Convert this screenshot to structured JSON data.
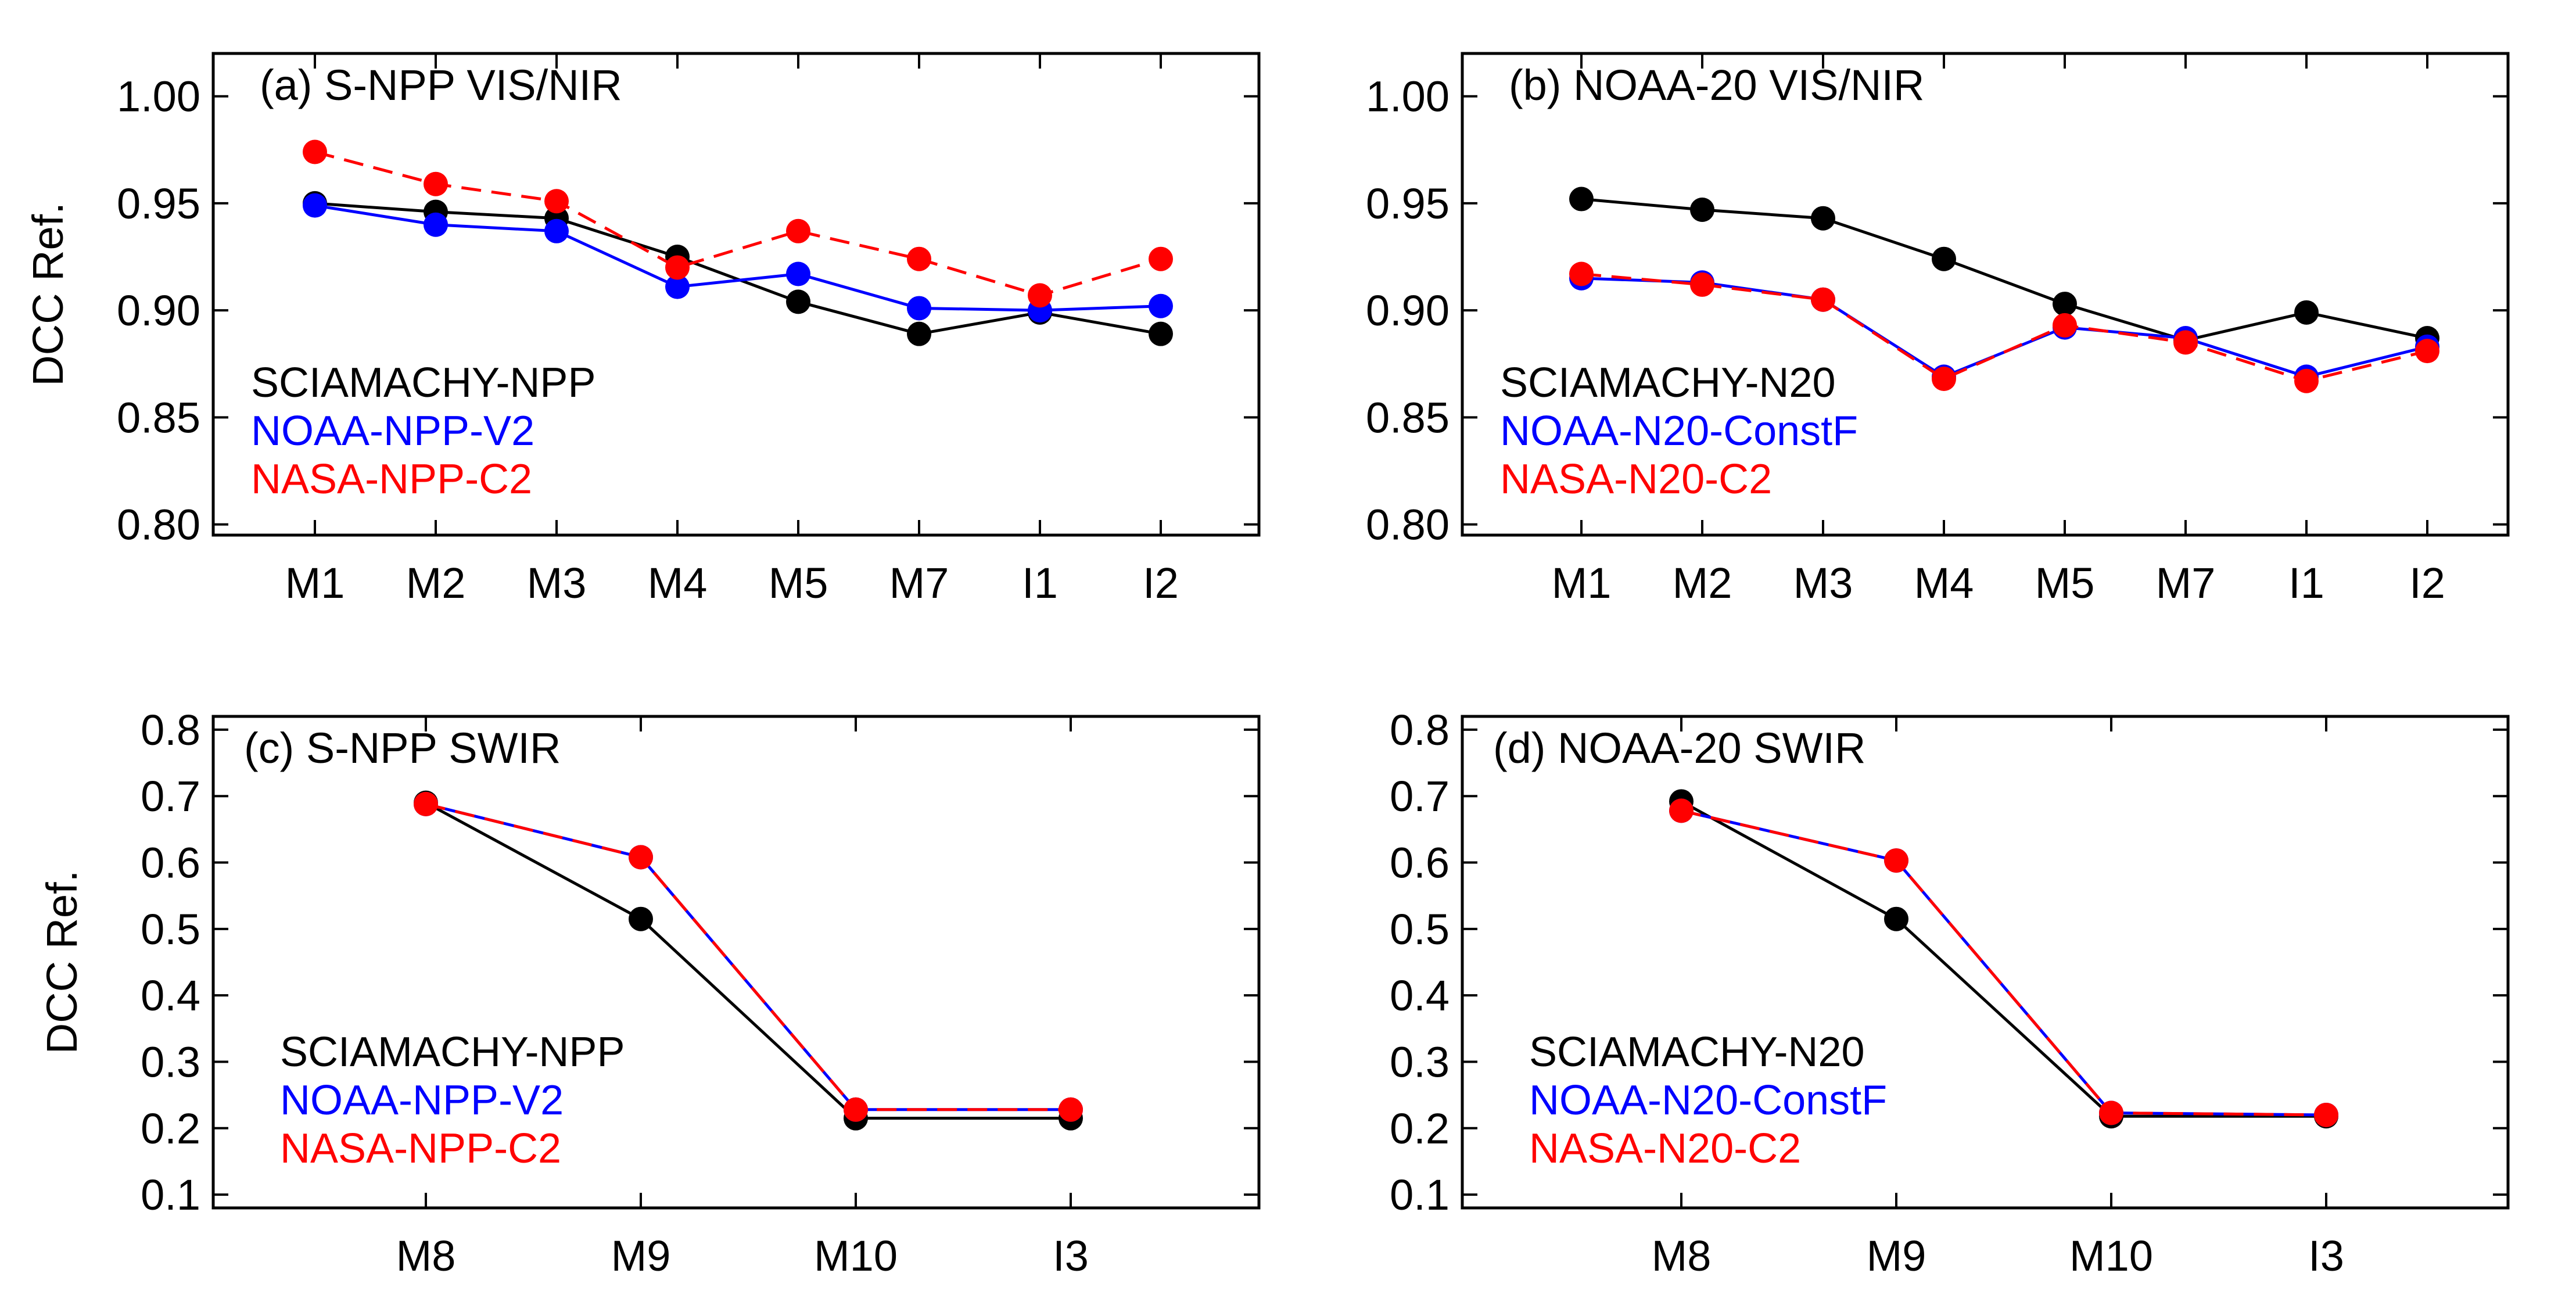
{
  "chart_data": [
    {
      "type": "line",
      "panel": "a",
      "title": "(a) S-NPP VIS/NIR",
      "ylabel": "DCC Ref.",
      "xlabel": "",
      "categories": [
        "M1",
        "M2",
        "M3",
        "M4",
        "M5",
        "M7",
        "I1",
        "I2"
      ],
      "ylim": [
        0.795,
        1.02
      ],
      "yticks": [
        "0.80",
        "0.85",
        "0.90",
        "0.95",
        "1.00"
      ],
      "legend_position": "lower-left",
      "series": [
        {
          "name": "SCIAMACHY-NPP",
          "color": "#000000",
          "dash": "solid",
          "values": [
            0.95,
            0.946,
            0.943,
            0.925,
            0.904,
            0.889,
            0.899,
            0.889
          ]
        },
        {
          "name": "NOAA-NPP-V2",
          "color": "#0000ff",
          "dash": "solid",
          "values": [
            0.949,
            0.94,
            0.937,
            0.911,
            0.917,
            0.901,
            0.9,
            0.902
          ]
        },
        {
          "name": "NASA-NPP-C2",
          "color": "#ff0000",
          "dash": "dashed",
          "values": [
            0.974,
            0.959,
            0.951,
            0.92,
            0.937,
            0.924,
            0.907,
            0.924
          ]
        }
      ]
    },
    {
      "type": "line",
      "panel": "b",
      "title": "(b) NOAA-20 VIS/NIR",
      "ylabel": "",
      "xlabel": "",
      "categories": [
        "M1",
        "M2",
        "M3",
        "M4",
        "M5",
        "M7",
        "I1",
        "I2"
      ],
      "ylim": [
        0.795,
        1.02
      ],
      "yticks": [
        "0.80",
        "0.85",
        "0.90",
        "0.95",
        "1.00"
      ],
      "legend_position": "lower-left",
      "series": [
        {
          "name": "SCIAMACHY-N20",
          "color": "#000000",
          "dash": "solid",
          "values": [
            0.952,
            0.947,
            0.943,
            0.924,
            0.903,
            0.886,
            0.899,
            0.887
          ]
        },
        {
          "name": "NOAA-N20-ConstF",
          "color": "#0000ff",
          "dash": "solid",
          "values": [
            0.915,
            0.913,
            0.905,
            0.869,
            0.892,
            0.887,
            0.869,
            0.883
          ]
        },
        {
          "name": "NASA-N20-C2",
          "color": "#ff0000",
          "dash": "dashed",
          "values": [
            0.917,
            0.912,
            0.905,
            0.868,
            0.893,
            0.885,
            0.867,
            0.881
          ]
        }
      ]
    },
    {
      "type": "line",
      "panel": "c",
      "title": "(c) S-NPP SWIR",
      "ylabel": "DCC Ref.",
      "xlabel": "",
      "categories": [
        "M8",
        "M9",
        "M10",
        "I3"
      ],
      "ylim": [
        0.08,
        0.82
      ],
      "yticks": [
        "0.1",
        "0.2",
        "0.3",
        "0.4",
        "0.5",
        "0.6",
        "0.7",
        "0.8"
      ],
      "legend_position": "lower-left",
      "series": [
        {
          "name": "SCIAMACHY-NPP",
          "color": "#000000",
          "dash": "solid",
          "values": [
            0.69,
            0.515,
            0.215,
            0.215
          ]
        },
        {
          "name": "NOAA-NPP-V2",
          "color": "#0000ff",
          "dash": "solid",
          "values": [
            0.688,
            0.608,
            0.228,
            0.228
          ]
        },
        {
          "name": "NASA-NPP-C2",
          "color": "#ff0000",
          "dash": "dashed",
          "values": [
            0.688,
            0.608,
            0.228,
            0.228
          ]
        }
      ]
    },
    {
      "type": "line",
      "panel": "d",
      "title": "(d) NOAA-20 SWIR",
      "ylabel": "",
      "xlabel": "",
      "categories": [
        "M8",
        "M9",
        "M10",
        "I3"
      ],
      "ylim": [
        0.08,
        0.82
      ],
      "yticks": [
        "0.1",
        "0.2",
        "0.3",
        "0.4",
        "0.5",
        "0.6",
        "0.7",
        "0.8"
      ],
      "legend_position": "lower-left",
      "series": [
        {
          "name": "SCIAMACHY-N20",
          "color": "#000000",
          "dash": "solid",
          "values": [
            0.692,
            0.515,
            0.218,
            0.218
          ]
        },
        {
          "name": "NOAA-N20-ConstF",
          "color": "#0000ff",
          "dash": "solid",
          "values": [
            0.678,
            0.603,
            0.223,
            0.22
          ]
        },
        {
          "name": "NASA-N20-C2",
          "color": "#ff0000",
          "dash": "dashed",
          "values": [
            0.678,
            0.603,
            0.223,
            0.22
          ]
        }
      ]
    }
  ]
}
